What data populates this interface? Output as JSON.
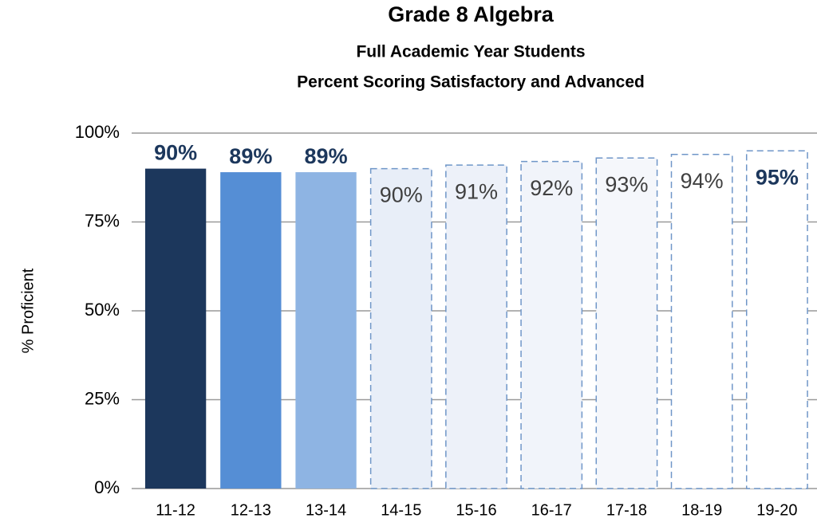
{
  "chart_data": {
    "type": "bar",
    "title": "Grade 8 Algebra",
    "subtitle": [
      "Full Academic Year Students",
      "Percent Scoring Satisfactory and Advanced"
    ],
    "y_label": "% Proficient",
    "categories": [
      "11-12",
      "12-13",
      "13-14",
      "14-15",
      "15-16",
      "16-17",
      "17-18",
      "18-19",
      "19-20"
    ],
    "values": [
      90,
      89,
      89,
      90,
      91,
      92,
      93,
      94,
      95
    ],
    "value_labels": [
      "90%",
      "89%",
      "89%",
      "90%",
      "91%",
      "92%",
      "93%",
      "94%",
      "95%"
    ],
    "colors": [
      "#1c375c",
      "#558ed5",
      "#8eb4e3",
      "#e8eef8",
      "#edf1f9",
      "#f1f4fa",
      "#f5f7fb",
      "#ffffff",
      "#ffffff"
    ],
    "dashed": [
      false,
      false,
      false,
      true,
      true,
      true,
      true,
      true,
      true
    ],
    "border_color": "#6f96c8",
    "label_colors": [
      "#1c375c",
      "#1c375c",
      "#1c375c",
      "#404040",
      "#404040",
      "#404040",
      "#404040",
      "#404040",
      "#1c375c"
    ],
    "label_bold": [
      true,
      true,
      true,
      false,
      false,
      false,
      false,
      false,
      true
    ],
    "ylim": [
      0,
      100
    ],
    "yticks": [
      {
        "value": 0,
        "label": "0%"
      },
      {
        "value": 25,
        "label": "25%"
      },
      {
        "value": 50,
        "label": "50%"
      },
      {
        "value": 75,
        "label": "75%"
      },
      {
        "value": 100,
        "label": "100%"
      }
    ],
    "grid": true
  }
}
